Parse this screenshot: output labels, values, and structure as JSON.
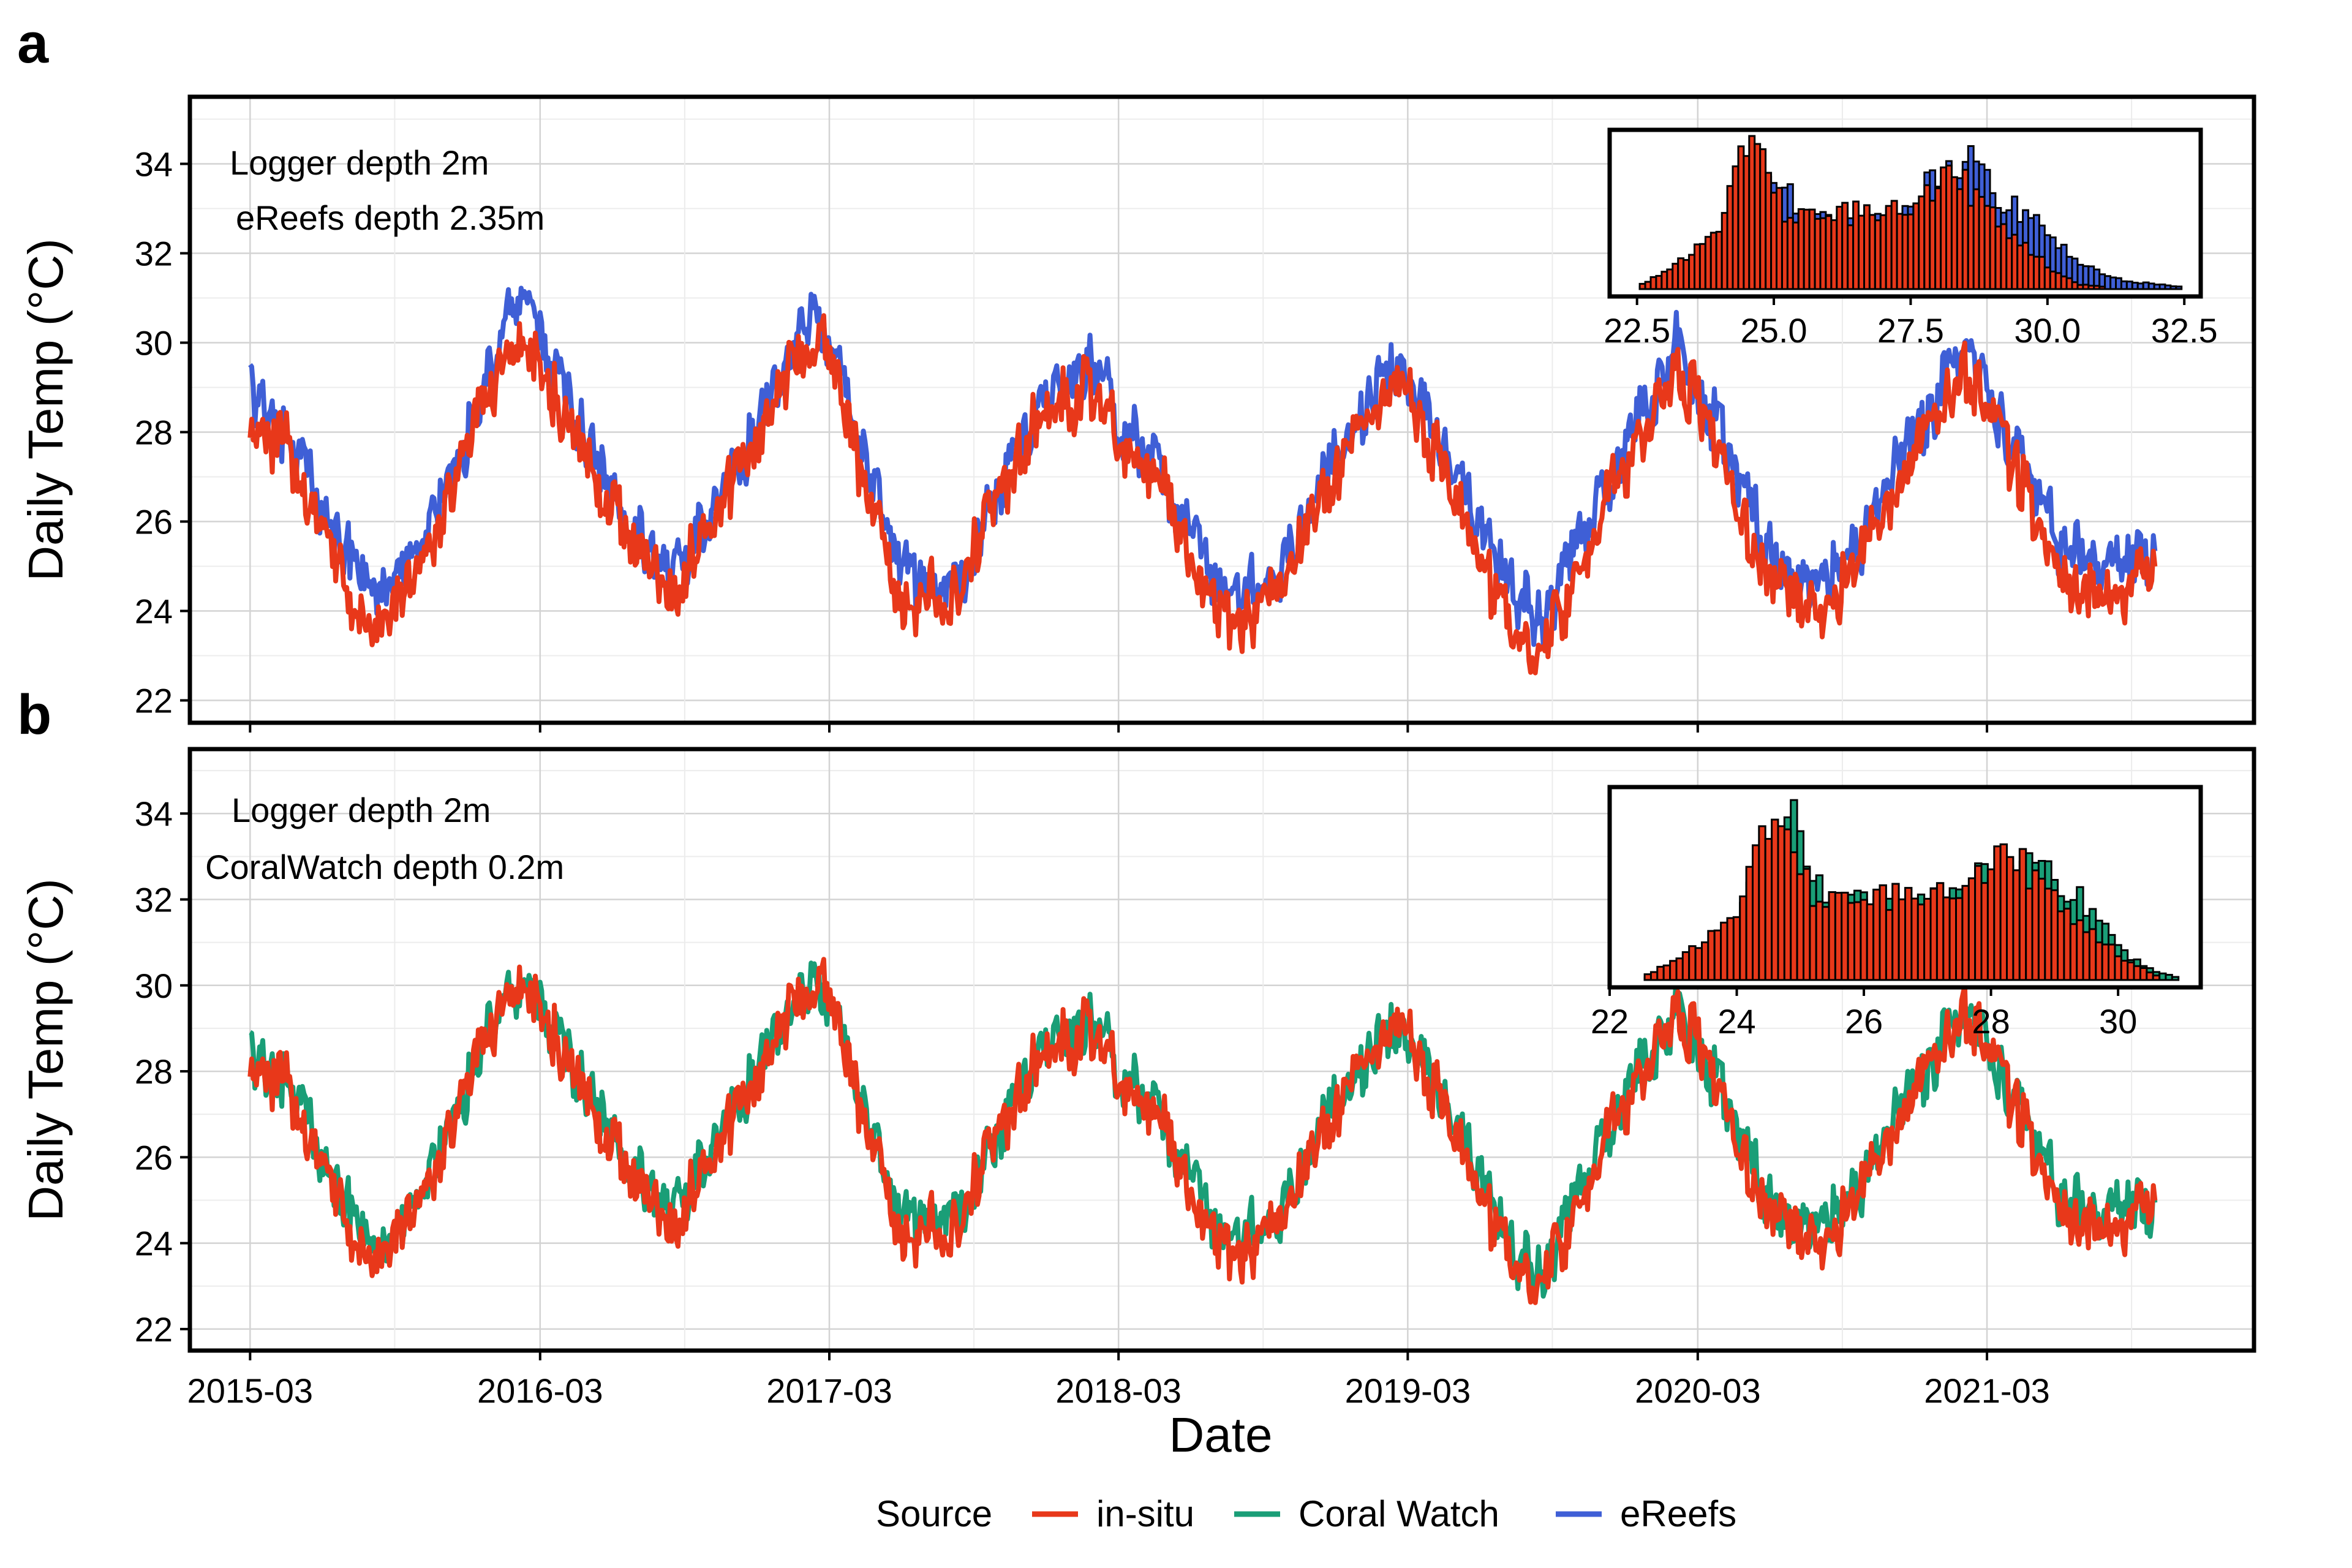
{
  "chart_data": [
    {
      "panel": "a",
      "type": "line",
      "xlabel": "Date",
      "ylabel": "Daily Temp (°C)",
      "ylim": [
        21.5,
        35.5
      ],
      "yticks": [
        22,
        24,
        26,
        28,
        30,
        32,
        34
      ],
      "xticks": [
        "2015-03",
        "2016-03",
        "2017-03",
        "2018-03",
        "2019-03",
        "2020-03",
        "2021-03"
      ],
      "xrange": [
        "2014-12-15",
        "2022-02-01"
      ],
      "grid": true,
      "annotations": [
        "Logger depth 2m",
        "eReefs depth 2.35m"
      ],
      "series": [
        {
          "name": "eReefs",
          "color": "#3F5FD6",
          "x": [
            "2015-03-01",
            "2015-04-15",
            "2015-06-01",
            "2015-07-15",
            "2015-08-15",
            "2015-10-01",
            "2015-11-15",
            "2016-01-01",
            "2016-02-01",
            "2016-03-01",
            "2016-04-15",
            "2016-06-01",
            "2016-07-15",
            "2016-08-15",
            "2016-10-01",
            "2016-11-15",
            "2017-01-01",
            "2017-02-01",
            "2017-03-01",
            "2017-04-15",
            "2017-06-01",
            "2017-07-15",
            "2017-08-15",
            "2017-10-01",
            "2017-11-15",
            "2018-01-01",
            "2018-02-01",
            "2018-03-01",
            "2018-04-15",
            "2018-06-01",
            "2018-07-15",
            "2018-08-15",
            "2018-10-01",
            "2018-11-15",
            "2019-01-01",
            "2019-02-01",
            "2019-03-01",
            "2019-04-15",
            "2019-06-01",
            "2019-07-15",
            "2019-08-15",
            "2019-10-01",
            "2019-11-15",
            "2020-01-01",
            "2020-02-01",
            "2020-03-01",
            "2020-04-15",
            "2020-06-01",
            "2020-07-15",
            "2020-08-15",
            "2020-10-01",
            "2020-11-15",
            "2021-01-01",
            "2021-02-01",
            "2021-03-01",
            "2021-04-15",
            "2021-06-01",
            "2021-07-15",
            "2021-08-15",
            "2021-09-30"
          ],
          "values": [
            28.9,
            28.0,
            26.2,
            24.9,
            24.6,
            25.3,
            27.2,
            29.4,
            31.2,
            30.2,
            28.3,
            26.6,
            25.3,
            24.6,
            26.2,
            27.6,
            29.3,
            30.6,
            30.2,
            27.4,
            24.7,
            24.6,
            24.7,
            26.8,
            28.4,
            29.1,
            29.6,
            28.2,
            27.6,
            25.5,
            24.4,
            24.5,
            25.2,
            27.1,
            28.4,
            29.4,
            29.2,
            27.7,
            25.8,
            24.4,
            23.7,
            25.4,
            27.2,
            28.6,
            30.0,
            29.0,
            27.2,
            25.4,
            24.6,
            24.8,
            25.8,
            27.6,
            28.8,
            29.9,
            28.9,
            27.3,
            25.6,
            25.1,
            25.1,
            25.4
          ]
        },
        {
          "name": "in-situ",
          "color": "#E8381A",
          "x": [
            "2015-03-01",
            "2015-04-15",
            "2015-06-01",
            "2015-07-15",
            "2015-08-15",
            "2015-10-01",
            "2015-11-15",
            "2016-01-01",
            "2016-02-01",
            "2016-03-01",
            "2016-04-15",
            "2016-06-01",
            "2016-07-15",
            "2016-08-15",
            "2016-10-01",
            "2016-11-15",
            "2017-01-01",
            "2017-02-01",
            "2017-03-01",
            "2017-04-15",
            "2017-06-01",
            "2017-07-15",
            "2017-08-15",
            "2017-10-01",
            "2017-11-15",
            "2018-01-01",
            "2018-02-01",
            "2018-03-01",
            "2018-04-15",
            "2018-06-01",
            "2018-07-15",
            "2018-08-15",
            "2018-10-01",
            "2018-11-15",
            "2019-01-01",
            "2019-02-01",
            "2019-03-01",
            "2019-04-15",
            "2019-06-01",
            "2019-07-15",
            "2019-08-15",
            "2019-10-01",
            "2019-11-15",
            "2020-01-01",
            "2020-02-01",
            "2020-03-01",
            "2020-04-15",
            "2020-06-01",
            "2020-07-15",
            "2020-08-15",
            "2020-10-01",
            "2020-11-15",
            "2021-01-01",
            "2021-02-01",
            "2021-03-01",
            "2021-04-15",
            "2021-06-01",
            "2021-07-15",
            "2021-08-15",
            "2021-09-30"
          ],
          "values": [
            28.2,
            27.7,
            25.6,
            24.1,
            23.6,
            24.8,
            26.8,
            29.0,
            30.0,
            29.5,
            27.8,
            26.3,
            25.0,
            24.2,
            26.0,
            27.4,
            29.0,
            30.2,
            29.9,
            26.8,
            24.0,
            24.4,
            24.6,
            26.5,
            28.2,
            28.7,
            29.2,
            27.8,
            27.2,
            25.0,
            23.8,
            24.0,
            24.8,
            26.8,
            28.0,
            28.9,
            28.8,
            27.2,
            25.2,
            23.4,
            22.9,
            24.8,
            26.8,
            28.2,
            29.6,
            28.6,
            26.6,
            24.8,
            24.0,
            24.3,
            25.4,
            27.2,
            28.4,
            29.4,
            28.5,
            26.8,
            25.0,
            24.3,
            24.5,
            24.8
          ]
        }
      ],
      "inset": {
        "type": "histogram",
        "xticks": [
          "22.5",
          "25.0",
          "27.5",
          "30.0",
          "32.5"
        ],
        "xrange": [
          22.0,
          32.8
        ],
        "bin_width": 0.1,
        "series": [
          {
            "name": "eReefs",
            "color": "#3F5FD6",
            "x": [
              22.6,
              23.0,
              23.5,
              24.0,
              24.3,
              24.6,
              24.9,
              25.2,
              25.6,
              26.0,
              26.5,
              27.0,
              27.5,
              27.9,
              28.3,
              28.6,
              29.0,
              29.4,
              29.8,
              30.2,
              30.6,
              31.0,
              31.5,
              32.0,
              32.4
            ],
            "counts": [
              1,
              3,
              8,
              12,
              30,
              52,
              48,
              45,
              30,
              26,
              27,
              29,
              33,
              45,
              47,
              52,
              40,
              35,
              26,
              18,
              10,
              6,
              3,
              2,
              1
            ]
          },
          {
            "name": "in-situ",
            "color": "#E8381A",
            "x": [
              22.6,
              23.0,
              23.5,
              24.0,
              24.3,
              24.6,
              24.9,
              25.2,
              25.6,
              26.0,
              26.5,
              27.0,
              27.5,
              27.9,
              28.3,
              28.6,
              29.0,
              29.4,
              29.8,
              30.2,
              30.6,
              31.0
            ],
            "counts": [
              2,
              8,
              14,
              22,
              48,
              63,
              45,
              33,
              28,
              30,
              31,
              32,
              35,
              44,
              48,
              40,
              30,
              22,
              14,
              6,
              2,
              1
            ]
          }
        ]
      }
    },
    {
      "panel": "b",
      "type": "line",
      "xlabel": "Date",
      "ylabel": "Daily Temp (°C)",
      "ylim": [
        21.5,
        35.5
      ],
      "yticks": [
        22,
        24,
        26,
        28,
        30,
        32,
        34
      ],
      "xticks": [
        "2015-03",
        "2016-03",
        "2017-03",
        "2018-03",
        "2019-03",
        "2020-03",
        "2021-03"
      ],
      "xrange": [
        "2014-12-15",
        "2022-02-01"
      ],
      "grid": true,
      "annotations": [
        "Logger depth 2m",
        "CoralWatch depth 0.2m"
      ],
      "series": [
        {
          "name": "Coral Watch",
          "color": "#1A9E77",
          "x": [
            "2015-03-01",
            "2015-04-15",
            "2015-06-01",
            "2015-07-15",
            "2015-08-15",
            "2015-10-01",
            "2015-11-15",
            "2016-01-01",
            "2016-02-01",
            "2016-03-01",
            "2016-04-15",
            "2016-06-01",
            "2016-07-15",
            "2016-08-15",
            "2016-10-01",
            "2016-11-15",
            "2017-01-01",
            "2017-02-01",
            "2017-03-01",
            "2017-04-15",
            "2017-06-01",
            "2017-07-15",
            "2017-08-15",
            "2017-10-01",
            "2017-11-15",
            "2018-01-01",
            "2018-02-01",
            "2018-03-01",
            "2018-04-15",
            "2018-06-01",
            "2018-07-15",
            "2018-08-15",
            "2018-10-01",
            "2018-11-15",
            "2019-01-01",
            "2019-02-01",
            "2019-03-01",
            "2019-04-15",
            "2019-06-01",
            "2019-07-15",
            "2019-08-15",
            "2019-10-01",
            "2019-11-15",
            "2020-01-01",
            "2020-02-01",
            "2020-03-01",
            "2020-04-15",
            "2020-06-01",
            "2020-07-15",
            "2020-08-15",
            "2020-10-01",
            "2020-11-15",
            "2021-01-01",
            "2021-02-01",
            "2021-03-01",
            "2021-04-15",
            "2021-06-01",
            "2021-07-15",
            "2021-08-15",
            "2021-09-30"
          ],
          "values": [
            28.3,
            27.9,
            25.9,
            24.4,
            24.0,
            25.0,
            27.0,
            29.1,
            30.0,
            29.6,
            28.0,
            26.5,
            25.2,
            24.5,
            26.2,
            27.6,
            29.1,
            30.0,
            29.8,
            27.0,
            24.3,
            24.7,
            24.8,
            26.6,
            28.3,
            28.8,
            29.2,
            28.0,
            27.4,
            25.3,
            24.1,
            24.3,
            25.0,
            27.0,
            28.1,
            29.0,
            28.8,
            27.4,
            25.5,
            23.7,
            23.2,
            25.0,
            27.0,
            28.3,
            29.5,
            28.6,
            26.8,
            25.0,
            24.4,
            24.6,
            25.6,
            27.3,
            28.5,
            29.3,
            28.6,
            27.0,
            25.2,
            24.7,
            24.9,
            25.0
          ]
        },
        {
          "name": "in-situ",
          "color": "#E8381A",
          "x": [
            "2015-03-01",
            "2015-04-15",
            "2015-06-01",
            "2015-07-15",
            "2015-08-15",
            "2015-10-01",
            "2015-11-15",
            "2016-01-01",
            "2016-02-01",
            "2016-03-01",
            "2016-04-15",
            "2016-06-01",
            "2016-07-15",
            "2016-08-15",
            "2016-10-01",
            "2016-11-15",
            "2017-01-01",
            "2017-02-01",
            "2017-03-01",
            "2017-04-15",
            "2017-06-01",
            "2017-07-15",
            "2017-08-15",
            "2017-10-01",
            "2017-11-15",
            "2018-01-01",
            "2018-02-01",
            "2018-03-01",
            "2018-04-15",
            "2018-06-01",
            "2018-07-15",
            "2018-08-15",
            "2018-10-01",
            "2018-11-15",
            "2019-01-01",
            "2019-02-01",
            "2019-03-01",
            "2019-04-15",
            "2019-06-01",
            "2019-07-15",
            "2019-08-15",
            "2019-10-01",
            "2019-11-15",
            "2020-01-01",
            "2020-02-01",
            "2020-03-01",
            "2020-04-15",
            "2020-06-01",
            "2020-07-15",
            "2020-08-15",
            "2020-10-01",
            "2020-11-15",
            "2021-01-01",
            "2021-02-01",
            "2021-03-01",
            "2021-04-15",
            "2021-06-01",
            "2021-07-15",
            "2021-08-15",
            "2021-09-30"
          ],
          "values": [
            28.2,
            27.7,
            25.6,
            24.1,
            23.6,
            24.8,
            26.8,
            29.0,
            30.0,
            29.5,
            27.8,
            26.3,
            25.0,
            24.2,
            26.0,
            27.4,
            29.0,
            30.2,
            29.9,
            26.8,
            24.0,
            24.4,
            24.6,
            26.5,
            28.2,
            28.7,
            29.2,
            27.8,
            27.2,
            25.0,
            23.8,
            24.0,
            24.8,
            26.8,
            28.0,
            28.9,
            28.8,
            27.2,
            25.2,
            23.4,
            22.9,
            24.8,
            26.8,
            28.2,
            29.6,
            28.6,
            26.6,
            24.8,
            24.0,
            24.3,
            25.4,
            27.2,
            28.4,
            29.4,
            28.5,
            26.8,
            25.0,
            24.3,
            24.5,
            24.8
          ]
        }
      ],
      "inset": {
        "type": "histogram",
        "xticks": [
          "22",
          "24",
          "26",
          "28",
          "30"
        ],
        "xrange": [
          22.0,
          31.3
        ],
        "bin_width": 0.1,
        "series": [
          {
            "name": "Coral Watch",
            "color": "#1A9E77",
            "x": [
              22.6,
              23.0,
              23.5,
              24.0,
              24.3,
              24.6,
              24.9,
              25.2,
              25.6,
              26.0,
              26.5,
              27.0,
              27.5,
              27.9,
              28.3,
              28.6,
              29.0,
              29.4,
              29.8,
              30.2,
              30.6,
              30.9
            ],
            "counts": [
              1,
              4,
              10,
              18,
              40,
              62,
              70,
              40,
              30,
              28,
              28,
              30,
              33,
              40,
              44,
              42,
              38,
              32,
              18,
              8,
              3,
              1
            ]
          },
          {
            "name": "in-situ",
            "color": "#E8381A",
            "x": [
              22.6,
              23.0,
              23.5,
              24.0,
              24.3,
              24.6,
              24.9,
              25.2,
              25.6,
              26.0,
              26.5,
              27.0,
              27.5,
              27.9,
              28.3,
              28.6,
              29.0,
              29.4,
              29.8,
              30.2,
              30.6
            ],
            "counts": [
              2,
              8,
              14,
              22,
              48,
              60,
              45,
              33,
              28,
              30,
              31,
              32,
              35,
              44,
              48,
              40,
              30,
              22,
              14,
              6,
              2
            ]
          }
        ]
      }
    }
  ],
  "legend": {
    "title": "Source",
    "position": "bottom",
    "items": [
      {
        "label": "in-situ",
        "color": "#E8381A"
      },
      {
        "label": "Coral Watch",
        "color": "#1A9E77"
      },
      {
        "label": "eReefs",
        "color": "#3F5FD6"
      }
    ]
  }
}
